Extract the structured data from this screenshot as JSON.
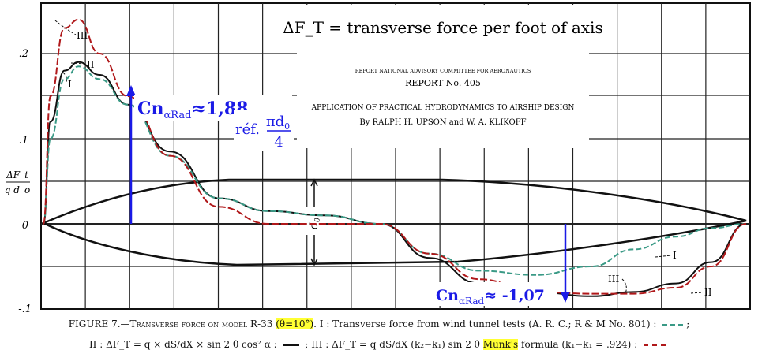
{
  "header": {
    "title": "ΔF_T = transverse force per foot of axis",
    "report_series": "REPORT NATIONAL ADVISORY COMMITTEE FOR AERONAUTICS",
    "report_number": "REPORT No. 405",
    "report_title": "APPLICATION OF PRACTICAL HYDRODYNAMICS TO AIRSHIP DESIGN",
    "authors": "By RALPH H. UPSON and W. A. KLIKOFF"
  },
  "axis": {
    "ylabel_top": "ΔF_t",
    "ylabel_bottom": "q d_o",
    "yticks": [
      ".2",
      ".1",
      "0",
      "-.1"
    ]
  },
  "curve_labels": {
    "I": "I",
    "II": "II",
    "III": "III"
  },
  "annotations": {
    "cn_positive": "Cn",
    "cn_positive_sub": "αRad",
    "cn_positive_value": "≈1,88",
    "reference_prefix": "réf.",
    "reference_num": "πd",
    "reference_num_sub": "0",
    "reference_den": "4",
    "cn_negative": "Cn",
    "cn_negative_sub": "αRad",
    "cn_negative_value": "≈ -1,07",
    "diameter_label": "d",
    "diameter_sub": "0"
  },
  "caption": {
    "line1_prefix": "FIGURE 7.—Transverse force on model R-33",
    "line1_highlight": "(θ=10°)",
    "line1_rest": ". I : Transverse force from wind tunnel tests (A. R. C.; R & M No. 801) :",
    "line1_end": ";",
    "line2_part1": "II : ΔF_T = q × dS/dX × sin 2 θ cos² α :",
    "line2_part2": "; III : ΔF_T = q dS/dX (k₂−k₁) sin 2 θ",
    "line2_highlight": "Munk's",
    "line2_part3": "formula (k₁−k₁ = .924) :"
  },
  "colors": {
    "curve_I": "#3a9a86",
    "curve_II": "#111111",
    "curve_III": "#b0181a",
    "annotation": "#1a1ae6",
    "highlight": "#ffff33"
  },
  "chart_data": {
    "type": "line",
    "x": [
      0,
      0.01,
      0.03,
      0.05,
      0.08,
      0.12,
      0.18,
      0.25,
      0.32,
      0.4,
      0.48,
      0.55,
      0.62,
      0.7,
      0.78,
      0.84,
      0.9,
      0.95,
      1.0
    ],
    "series": [
      {
        "name": "I",
        "values": [
          0,
          0.1,
          0.17,
          0.185,
          0.17,
          0.14,
          0.08,
          0.03,
          0.015,
          0.01,
          0,
          -0.035,
          -0.055,
          -0.06,
          -0.05,
          -0.03,
          -0.015,
          -0.005,
          0
        ]
      },
      {
        "name": "II",
        "values": [
          0,
          0.12,
          0.18,
          0.19,
          0.175,
          0.14,
          0.085,
          0.03,
          0.015,
          0.01,
          0,
          -0.04,
          -0.07,
          -0.08,
          -0.085,
          -0.08,
          -0.07,
          -0.045,
          0
        ]
      },
      {
        "name": "III",
        "values": [
          0,
          0.15,
          0.23,
          0.24,
          0.2,
          0.15,
          0.08,
          0.02,
          0,
          0,
          0,
          -0.035,
          -0.065,
          -0.08,
          -0.082,
          -0.082,
          -0.075,
          -0.05,
          0
        ]
      }
    ],
    "yticks": [
      0.2,
      0.1,
      0,
      -0.1
    ]
  }
}
